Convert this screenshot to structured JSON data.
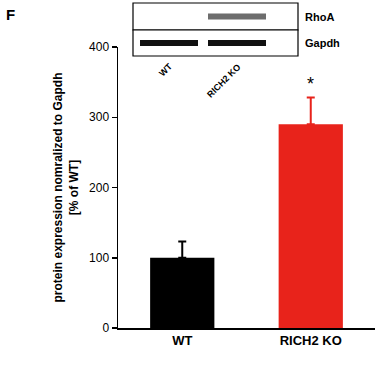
{
  "chart_data": {
    "type": "bar",
    "panel_label": "F",
    "y_label": [
      "protein expression nomralized to Gapdh",
      "[% of WT]"
    ],
    "categories": [
      "WT",
      "RICH2 KO"
    ],
    "values": [
      100,
      290
    ],
    "errors": [
      23,
      38
    ],
    "colors": [
      "#000000",
      "#e8231b"
    ],
    "ylim": [
      0,
      400
    ],
    "yticks": [
      0,
      100,
      200,
      300,
      400
    ],
    "grid": false,
    "annotations": [
      {
        "text": "*",
        "category": "RICH2 KO"
      }
    ],
    "blot": {
      "bands": [
        "RhoA",
        "Gapdh"
      ],
      "lanes": [
        "WT",
        "RICH2 KO"
      ]
    }
  }
}
